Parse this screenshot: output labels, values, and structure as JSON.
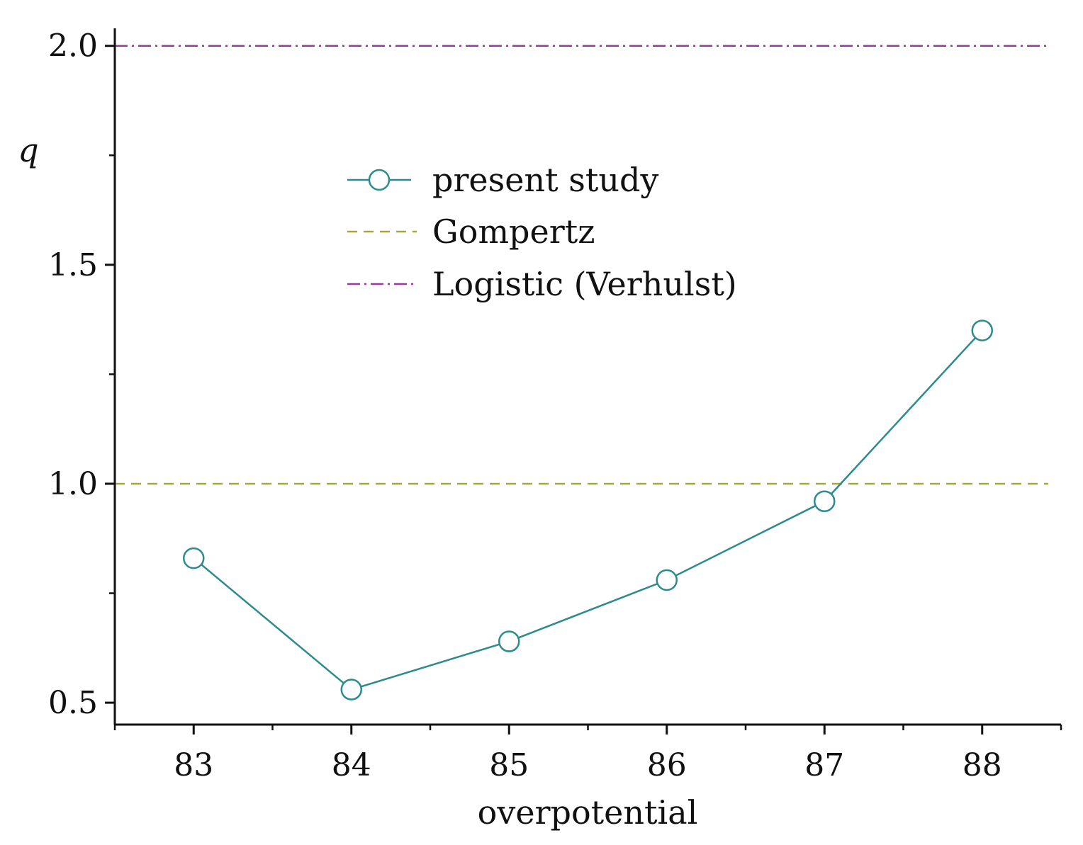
{
  "chart_data": {
    "type": "line",
    "title": "",
    "xlabel": "overpotential",
    "ylabel": "q",
    "xlim": [
      82.5,
      88.5
    ],
    "ylim": [
      0.45,
      2.04
    ],
    "x_ticks": [
      83,
      84,
      85,
      86,
      87,
      88
    ],
    "x_tick_labels": [
      "83",
      "84",
      "85",
      "86",
      "87",
      "88"
    ],
    "y_ticks": [
      0.5,
      1.0,
      1.5,
      2.0
    ],
    "y_tick_labels": [
      "0.5",
      "1.0",
      "1.5",
      "2.0"
    ],
    "grid": false,
    "legend_position": "upper-center",
    "series": [
      {
        "name": "present study",
        "style": "solid-line-open-circle",
        "color": "#2e8b8b",
        "x": [
          83,
          84,
          85,
          86,
          87,
          88
        ],
        "values": [
          0.83,
          0.53,
          0.64,
          0.78,
          0.96,
          1.35
        ]
      }
    ],
    "reference_lines": [
      {
        "name": "Gompertz",
        "y": 1.0,
        "style": "dashed",
        "color": "#a5a842"
      },
      {
        "name": "Logistic (Verhulst)",
        "y": 2.0,
        "style": "dash-dot",
        "color": "#9b3a9b"
      }
    ]
  }
}
